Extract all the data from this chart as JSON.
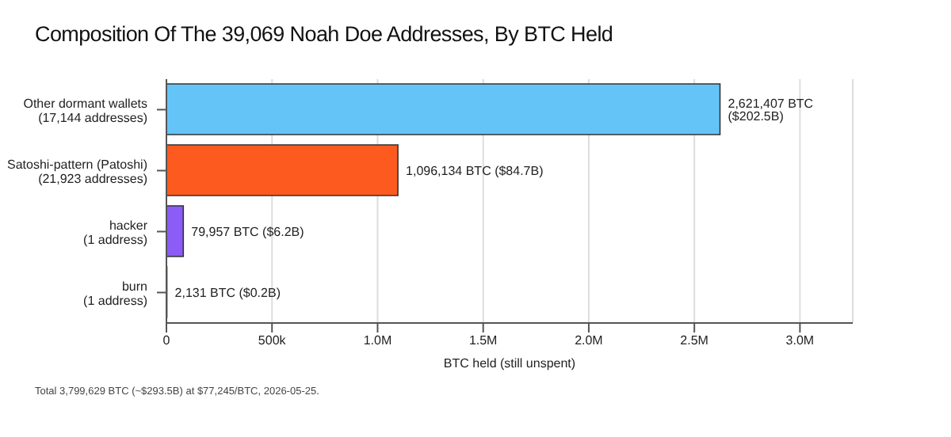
{
  "chart_data": {
    "type": "bar",
    "orientation": "horizontal",
    "title": "Composition Of The 39,069 Noah Doe Addresses, By BTC Held",
    "categories": [
      "Other dormant wallets\n(17,144 addresses)",
      "Satoshi-pattern (Patoshi)\n(21,923 addresses)",
      "hacker\n(1 address)",
      "burn\n(1 address)"
    ],
    "values": [
      2621407,
      1096134,
      79957,
      2131
    ],
    "colors": [
      "#64c4f8",
      "#fc5a1e",
      "#8b5cf6",
      "#333333"
    ],
    "value_labels": [
      "2,621,407 BTC  ($202.5B)",
      "1,096,134 BTC  ($84.7B)",
      "79,957 BTC  ($6.2B)",
      "2,131 BTC  ($0.2B)"
    ],
    "xlabel": "BTC held (still unspent)",
    "xlim": [
      0,
      3250000
    ],
    "xticks": [
      0,
      {
        "value": 500000,
        "label": "500k"
      },
      {
        "value": 1000000,
        "label": "1.0M"
      },
      {
        "value": 1500000,
        "label": "1.5M"
      },
      {
        "value": 2000000,
        "label": "2.0M"
      },
      {
        "value": 2500000,
        "label": "2.5M"
      },
      {
        "value": 3000000,
        "label": "3.0M"
      }
    ],
    "grid": "x",
    "annotations": [
      "Total 3,799,629 BTC (~$293.5B) at $77,245/BTC, 2026-05-25."
    ]
  }
}
